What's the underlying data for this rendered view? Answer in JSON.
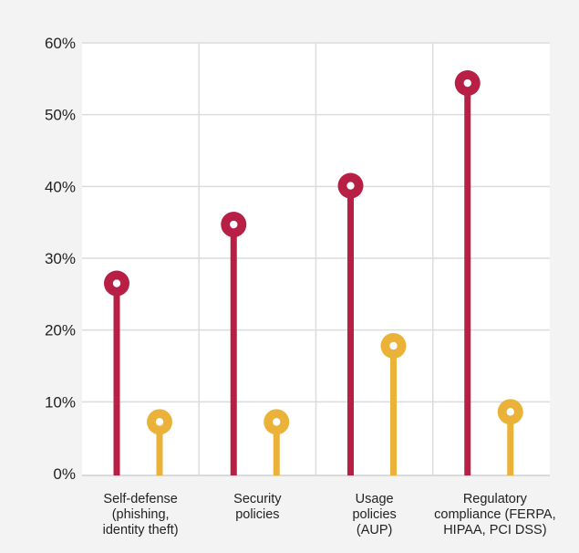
{
  "chart_data": {
    "type": "lollipop",
    "title": "",
    "xlabel": "",
    "ylabel": "",
    "ylim": [
      0,
      60
    ],
    "yticks": [
      0,
      10,
      20,
      30,
      40,
      50,
      60
    ],
    "ytick_labels": [
      "0%",
      "10%",
      "20%",
      "30%",
      "40%",
      "50%",
      "60%"
    ],
    "grid": true,
    "legend": "none",
    "categories": [
      [
        "Self-defense",
        "(phishing,",
        "identity theft)"
      ],
      [
        "Security",
        "policies"
      ],
      [
        "Usage",
        "policies",
        "(AUP)"
      ],
      [
        "Regulatory",
        "compliance (FERPA,",
        "HIPAA, PCI DSS)"
      ]
    ],
    "series": [
      {
        "values": [
          26.5,
          34.7,
          40.1,
          54.4
        ],
        "color": "#b81f45"
      },
      {
        "values": [
          7.2,
          7.2,
          17.8,
          8.6
        ],
        "color": "#ebb23a"
      }
    ]
  }
}
